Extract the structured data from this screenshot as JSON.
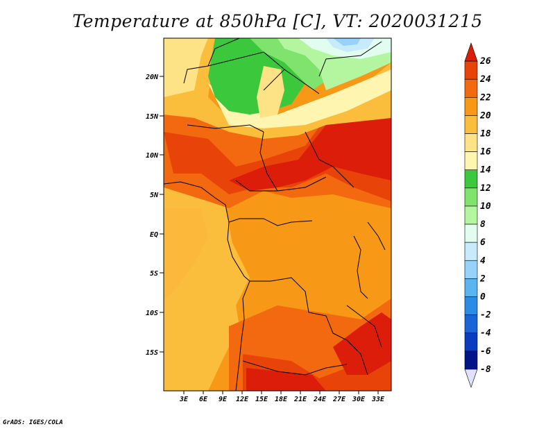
{
  "title": "Temperature at 850hPa [C], VT: 2020031215",
  "credit": "GrADS: IGES/COLA",
  "map": {
    "lat_labels": [
      "20N",
      "15N",
      "10N",
      "5N",
      "EQ",
      "5S",
      "10S",
      "15S"
    ],
    "lon_labels": [
      "3E",
      "6E",
      "9E",
      "12E",
      "15E",
      "18E",
      "21E",
      "24E",
      "27E",
      "30E",
      "33E"
    ]
  },
  "colorbar": {
    "labels": [
      "26",
      "24",
      "22",
      "20",
      "18",
      "16",
      "14",
      "12",
      "10",
      "8",
      "6",
      "4",
      "2",
      "0",
      "-2",
      "-4",
      "-6",
      "-8"
    ],
    "colors": [
      "#dc1d0a",
      "#e8440a",
      "#f2690f",
      "#f79816",
      "#fbbd3c",
      "#fde385",
      "#fdf5b0",
      "#3cc83c",
      "#80e36e",
      "#b4f5a0",
      "#e0fdf0",
      "#c8ebfb",
      "#96d2fa",
      "#5ab4f0",
      "#2d8be8",
      "#1964d6",
      "#0a3cbf",
      "#00148a",
      "#e0e0ff"
    ]
  }
}
